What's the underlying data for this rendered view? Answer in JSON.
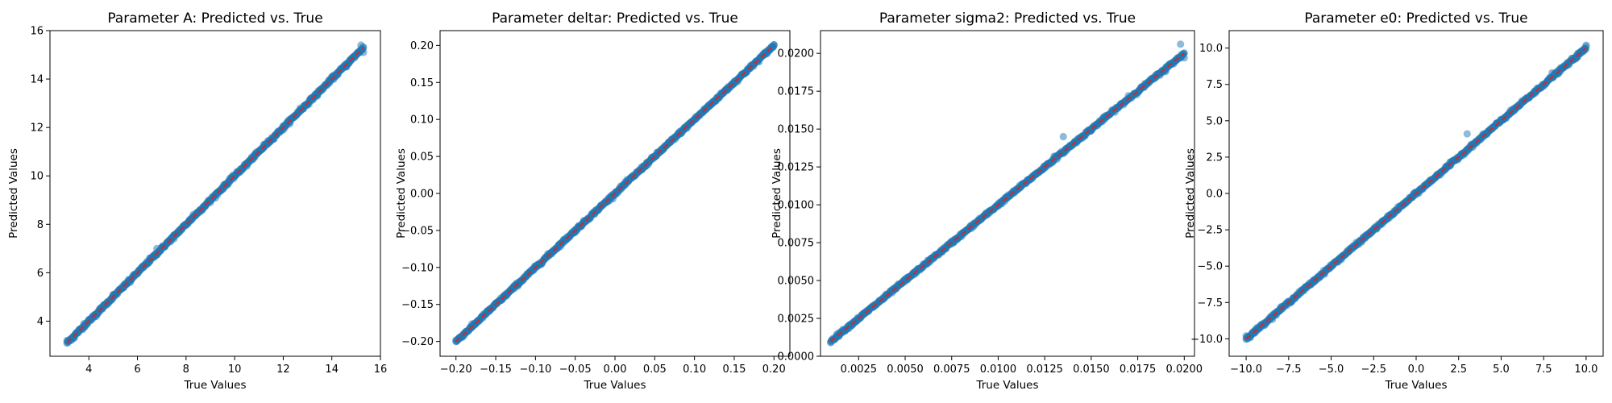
{
  "chart_data": [
    {
      "type": "scatter",
      "title": "Parameter A: Predicted vs. True",
      "xlabel": "True Values",
      "ylabel": "Predicted Values",
      "xlim": [
        2.4,
        16.0
      ],
      "ylim": [
        2.55,
        16.0
      ],
      "xticks": [
        4,
        6,
        8,
        10,
        12,
        14,
        16
      ],
      "yticks": [
        4,
        6,
        8,
        10,
        12,
        14,
        16
      ],
      "xticklabels": [
        "4",
        "6",
        "8",
        "10",
        "12",
        "14",
        "16"
      ],
      "yticklabels": [
        "4",
        "6",
        "8",
        "10",
        "12",
        "14",
        "16"
      ],
      "data_range": [
        3.1,
        15.3
      ],
      "reference_line": [
        [
          3.1,
          3.1
        ],
        [
          15.3,
          15.3
        ]
      ],
      "series": [
        {
          "values": [
            [
              3.1,
              3.2
            ],
            [
              3.4,
              3.3
            ],
            [
              3.8,
              3.9
            ],
            [
              4.3,
              4.2
            ],
            [
              5.0,
              5.1
            ],
            [
              5.7,
              5.6
            ],
            [
              6.5,
              6.6
            ],
            [
              6.8,
              7.0
            ],
            [
              7.5,
              7.4
            ],
            [
              8.3,
              8.4
            ],
            [
              9.0,
              8.9
            ],
            [
              9.8,
              9.9
            ],
            [
              10.5,
              10.4
            ],
            [
              11.2,
              11.3
            ],
            [
              12.0,
              11.9
            ],
            [
              12.7,
              12.8
            ],
            [
              13.4,
              13.3
            ],
            [
              14.0,
              14.1
            ],
            [
              14.6,
              14.5
            ],
            [
              15.2,
              15.4
            ],
            [
              15.3,
              15.1
            ]
          ]
        }
      ],
      "colors": {
        "points": "#1f77b4",
        "line": "#d62728"
      },
      "grid": false
    },
    {
      "type": "scatter",
      "title": "Parameter deltar: Predicted vs. True",
      "xlabel": "True Values",
      "ylabel": "Predicted Values",
      "xlim": [
        -0.22,
        0.22
      ],
      "ylim": [
        -0.22,
        0.22
      ],
      "xticks": [
        -0.2,
        -0.15,
        -0.1,
        -0.05,
        0.0,
        0.05,
        0.1,
        0.15,
        0.2
      ],
      "yticks": [
        -0.2,
        -0.15,
        -0.1,
        -0.05,
        0.0,
        0.05,
        0.1,
        0.15,
        0.2
      ],
      "xticklabels": [
        "−0.20",
        "−0.15",
        "−0.10",
        "−0.05",
        "0.00",
        "0.05",
        "0.10",
        "0.15",
        "0.20"
      ],
      "yticklabels": [
        "−0.20",
        "−0.15",
        "−0.10",
        "−0.05",
        "0.00",
        "0.05",
        "0.10",
        "0.15",
        "0.20"
      ],
      "data_range": [
        -0.2,
        0.2
      ],
      "reference_line": [
        [
          -0.2,
          -0.2
        ],
        [
          0.2,
          0.2
        ]
      ],
      "series": [
        {
          "values": [
            [
              -0.2,
              -0.198
            ],
            [
              -0.18,
              -0.181
            ],
            [
              -0.15,
              -0.149
            ],
            [
              -0.12,
              -0.121
            ],
            [
              -0.1,
              -0.1
            ],
            [
              -0.07,
              -0.069
            ],
            [
              -0.04,
              -0.041
            ],
            [
              -0.01,
              -0.011
            ],
            [
              0.02,
              0.021
            ],
            [
              0.05,
              0.049
            ],
            [
              0.08,
              0.081
            ],
            [
              0.11,
              0.109
            ],
            [
              0.14,
              0.141
            ],
            [
              0.17,
              0.169
            ],
            [
              0.2,
              0.201
            ]
          ]
        }
      ],
      "colors": {
        "points": "#1f77b4",
        "line": "#d62728"
      },
      "grid": false
    },
    {
      "type": "scatter",
      "title": "Parameter sigma2: Predicted vs. True",
      "xlabel": "True Values",
      "ylabel": "Predicted Values",
      "xlim": [
        0.00045,
        0.02055
      ],
      "ylim": [
        0.0,
        0.0215
      ],
      "xticks": [
        0.0025,
        0.005,
        0.0075,
        0.01,
        0.0125,
        0.015,
        0.0175,
        0.02
      ],
      "yticks": [
        0.0,
        0.0025,
        0.005,
        0.0075,
        0.01,
        0.0125,
        0.015,
        0.0175,
        0.02
      ],
      "xticklabels": [
        "0.0025",
        "0.0050",
        "0.0075",
        "0.0100",
        "0.0125",
        "0.0150",
        "0.0175",
        "0.0200"
      ],
      "yticklabels": [
        "0.0000",
        "0.0025",
        "0.0050",
        "0.0075",
        "0.0100",
        "0.0125",
        "0.0150",
        "0.0175",
        "0.0200"
      ],
      "data_range": [
        0.001,
        0.02
      ],
      "reference_line": [
        [
          0.001,
          0.001
        ],
        [
          0.02,
          0.02
        ]
      ],
      "series": [
        {
          "values": [
            [
              0.001,
              0.0009
            ],
            [
              0.0015,
              0.0016
            ],
            [
              0.003,
              0.003
            ],
            [
              0.005,
              0.0051
            ],
            [
              0.007,
              0.0069
            ],
            [
              0.009,
              0.0091
            ],
            [
              0.011,
              0.011
            ],
            [
              0.013,
              0.0132
            ],
            [
              0.0135,
              0.0145
            ],
            [
              0.015,
              0.0149
            ],
            [
              0.017,
              0.0172
            ],
            [
              0.019,
              0.0188
            ],
            [
              0.0198,
              0.0206
            ],
            [
              0.02,
              0.0197
            ]
          ]
        }
      ],
      "colors": {
        "points": "#1f77b4",
        "line": "#d62728"
      },
      "grid": false
    },
    {
      "type": "scatter",
      "title": "Parameter e0: Predicted vs. True",
      "xlabel": "True Values",
      "ylabel": "Predicted Values",
      "xlim": [
        -11.0,
        11.0
      ],
      "ylim": [
        -11.2,
        11.2
      ],
      "xticks": [
        -10,
        -7.5,
        -5,
        -2.5,
        0,
        2.5,
        5,
        7.5,
        10
      ],
      "yticks": [
        -10,
        -7.5,
        -5,
        -2.5,
        0,
        2.5,
        5,
        7.5,
        10
      ],
      "xticklabels": [
        "−10.0",
        "−7.5",
        "−5.0",
        "−2.5",
        "0.0",
        "2.5",
        "5.0",
        "7.5",
        "10.0"
      ],
      "yticklabels": [
        "−10.0",
        "−7.5",
        "−5.0",
        "−2.5",
        "0.0",
        "2.5",
        "5.0",
        "7.5",
        "10.0"
      ],
      "data_range": [
        -10,
        10
      ],
      "reference_line": [
        [
          -10,
          -10
        ],
        [
          10,
          10
        ]
      ],
      "series": [
        {
          "values": [
            [
              -10,
              -9.8
            ],
            [
              -9.5,
              -9.6
            ],
            [
              -8,
              -7.9
            ],
            [
              -6,
              -6.1
            ],
            [
              -4,
              -3.9
            ],
            [
              -2,
              -2.1
            ],
            [
              0,
              0.1
            ],
            [
              2,
              1.9
            ],
            [
              3,
              4.1
            ],
            [
              5,
              5.1
            ],
            [
              7,
              6.9
            ],
            [
              8,
              8.3
            ],
            [
              9.5,
              9.4
            ],
            [
              10,
              10.2
            ]
          ]
        }
      ],
      "colors": {
        "points": "#1f77b4",
        "line": "#d62728"
      },
      "grid": false
    }
  ]
}
